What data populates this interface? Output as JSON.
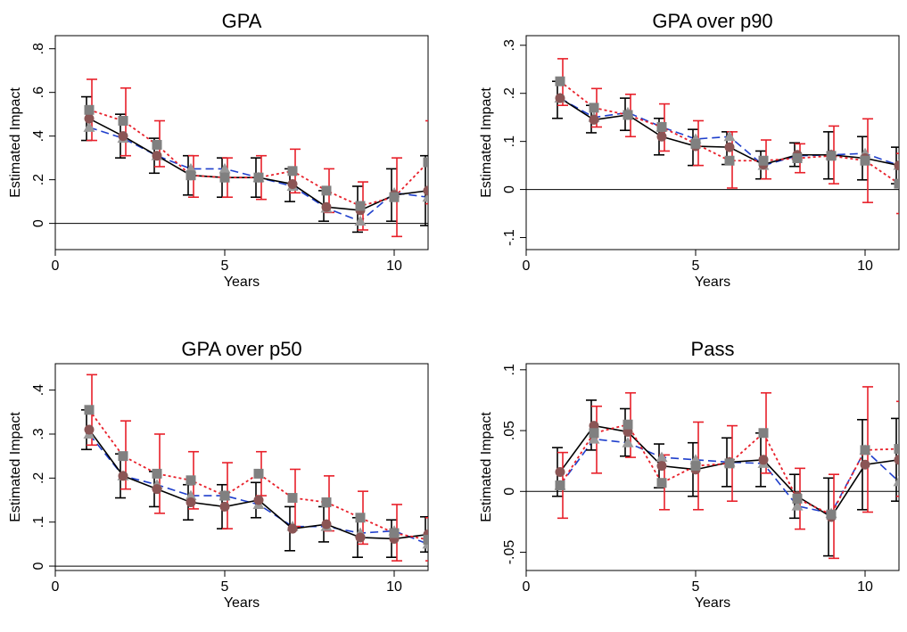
{
  "chart_data": [
    {
      "type": "line",
      "title": "GPA",
      "xlabel": "Years",
      "ylabel": "Estimated Impact",
      "xlim": [
        0,
        11
      ],
      "ylim": [
        -0.12,
        0.86
      ],
      "xticks": [
        0,
        5,
        10
      ],
      "xtick_labels": [
        "0",
        "5",
        "10"
      ],
      "yticks": [
        0,
        0.2,
        0.4,
        0.6,
        0.8
      ],
      "ytick_labels": [
        "0",
        ".2",
        ".4",
        ".6",
        ".8"
      ],
      "zero_line": 0,
      "x": [
        1,
        2,
        3,
        4,
        5,
        6,
        7,
        8,
        9,
        10,
        11
      ],
      "series": [
        {
          "style": "solid",
          "color": "#000000",
          "marker": "circle",
          "marker_color": "#8a5555",
          "values": [
            0.48,
            0.4,
            0.31,
            0.22,
            0.21,
            0.21,
            0.18,
            0.075,
            0.06,
            0.13,
            0.15
          ],
          "ci_lower": [
            0.38,
            0.3,
            0.23,
            0.13,
            0.12,
            0.12,
            0.1,
            0.01,
            -0.04,
            0.01,
            -0.01
          ],
          "ci_upper": [
            0.58,
            0.5,
            0.39,
            0.31,
            0.3,
            0.3,
            0.25,
            0.15,
            0.17,
            0.25,
            0.31
          ]
        },
        {
          "style": "dashed",
          "color": "#1f3fcc",
          "marker": "triangle",
          "marker_color": "#999999",
          "values": [
            0.44,
            0.39,
            0.31,
            0.25,
            0.25,
            0.21,
            0.17,
            0.07,
            0.01,
            0.14,
            0.12
          ],
          "ci_lower": [],
          "ci_upper": []
        },
        {
          "style": "dotted",
          "color": "#e8202a",
          "marker": "square",
          "marker_color": "#808080",
          "values": [
            0.52,
            0.47,
            0.36,
            0.22,
            0.21,
            0.21,
            0.24,
            0.15,
            0.08,
            0.12,
            0.28
          ],
          "ci_lower": [
            0.38,
            0.31,
            0.26,
            0.12,
            0.12,
            0.11,
            0.14,
            0.05,
            -0.03,
            -0.06,
            0.09
          ],
          "ci_upper": [
            0.66,
            0.62,
            0.47,
            0.31,
            0.3,
            0.31,
            0.34,
            0.25,
            0.19,
            0.3,
            0.47
          ]
        }
      ]
    },
    {
      "type": "line",
      "title": "GPA over p90",
      "xlabel": "Years",
      "ylabel": "Estimated Impact",
      "xlim": [
        0,
        11
      ],
      "ylim": [
        -0.125,
        0.32
      ],
      "xticks": [
        0,
        5,
        10
      ],
      "xtick_labels": [
        "0",
        "5",
        "10"
      ],
      "yticks": [
        -0.1,
        0,
        0.1,
        0.2,
        0.3
      ],
      "ytick_labels": [
        "-.1",
        "0",
        ".1",
        ".2",
        ".3"
      ],
      "zero_line": 0,
      "x": [
        1,
        2,
        3,
        4,
        5,
        6,
        7,
        8,
        9,
        10,
        11
      ],
      "series": [
        {
          "style": "solid",
          "color": "#000000",
          "marker": "circle",
          "marker_color": "#8a5555",
          "values": [
            0.19,
            0.145,
            0.155,
            0.11,
            0.09,
            0.088,
            0.052,
            0.072,
            0.072,
            0.065,
            0.05
          ],
          "ci_lower": [
            0.148,
            0.118,
            0.123,
            0.072,
            0.05,
            0.052,
            0.022,
            0.048,
            0.022,
            0.02,
            0.012
          ],
          "ci_upper": [
            0.225,
            0.175,
            0.19,
            0.148,
            0.125,
            0.12,
            0.08,
            0.097,
            0.12,
            0.11,
            0.088
          ]
        },
        {
          "style": "dashed",
          "color": "#1f3fcc",
          "marker": "triangle",
          "marker_color": "#999999",
          "values": [
            0.19,
            0.15,
            0.16,
            0.13,
            0.105,
            0.11,
            0.05,
            0.07,
            0.072,
            0.075,
            0.05
          ],
          "ci_lower": [],
          "ci_upper": []
        },
        {
          "style": "dotted",
          "color": "#e8202a",
          "marker": "square",
          "marker_color": "#808080",
          "values": [
            0.225,
            0.17,
            0.155,
            0.13,
            0.095,
            0.06,
            0.06,
            0.065,
            0.07,
            0.06,
            0.012
          ],
          "ci_lower": [
            0.175,
            0.13,
            0.11,
            0.08,
            0.05,
            0.003,
            0.022,
            0.035,
            0.012,
            -0.027,
            -0.05
          ],
          "ci_upper": [
            0.272,
            0.21,
            0.198,
            0.178,
            0.143,
            0.12,
            0.103,
            0.095,
            0.132,
            0.147,
            0.075
          ]
        }
      ]
    },
    {
      "type": "line",
      "title": "GPA over p50",
      "xlabel": "Years",
      "ylabel": "Estimated Impact",
      "xlim": [
        0,
        11
      ],
      "ylim": [
        -0.01,
        0.46
      ],
      "xticks": [
        0,
        5,
        10
      ],
      "xtick_labels": [
        "0",
        "5",
        "10"
      ],
      "yticks": [
        0,
        0.1,
        0.2,
        0.3,
        0.4
      ],
      "ytick_labels": [
        "0",
        ".1",
        ".2",
        ".3",
        ".4"
      ],
      "zero_line": 0,
      "x": [
        1,
        2,
        3,
        4,
        5,
        6,
        7,
        8,
        9,
        10,
        11
      ],
      "series": [
        {
          "style": "solid",
          "color": "#000000",
          "marker": "circle",
          "marker_color": "#8a5555",
          "values": [
            0.31,
            0.205,
            0.175,
            0.145,
            0.135,
            0.15,
            0.085,
            0.095,
            0.065,
            0.062,
            0.072
          ],
          "ci_lower": [
            0.265,
            0.155,
            0.135,
            0.105,
            0.085,
            0.11,
            0.035,
            0.055,
            0.02,
            0.02,
            0.032
          ],
          "ci_upper": [
            0.355,
            0.255,
            0.215,
            0.185,
            0.185,
            0.19,
            0.135,
            0.135,
            0.11,
            0.105,
            0.112
          ]
        },
        {
          "style": "dashed",
          "color": "#1f3fcc",
          "marker": "triangle",
          "marker_color": "#999999",
          "values": [
            0.3,
            0.205,
            0.185,
            0.16,
            0.16,
            0.14,
            0.09,
            0.09,
            0.075,
            0.08,
            0.05
          ],
          "ci_lower": [],
          "ci_upper": []
        },
        {
          "style": "dotted",
          "color": "#e8202a",
          "marker": "square",
          "marker_color": "#808080",
          "values": [
            0.355,
            0.25,
            0.21,
            0.195,
            0.16,
            0.21,
            0.155,
            0.145,
            0.11,
            0.075,
            0.06
          ],
          "ci_lower": [
            0.275,
            0.175,
            0.12,
            0.13,
            0.085,
            0.16,
            0.09,
            0.08,
            0.05,
            0.012,
            0.012
          ],
          "ci_upper": [
            0.435,
            0.33,
            0.3,
            0.26,
            0.235,
            0.26,
            0.22,
            0.205,
            0.17,
            0.14,
            0.11
          ]
        }
      ]
    },
    {
      "type": "line",
      "title": "Pass",
      "xlabel": "Years",
      "ylabel": "Estimated Impact",
      "xlim": [
        0,
        11
      ],
      "ylim": [
        -0.065,
        0.105
      ],
      "xticks": [
        0,
        5,
        10
      ],
      "xtick_labels": [
        "0",
        "5",
        "10"
      ],
      "yticks": [
        -0.05,
        0,
        0.05,
        0.1
      ],
      "ytick_labels": [
        "-.05",
        "0",
        ".05",
        ".1"
      ],
      "zero_line": 0,
      "x": [
        1,
        2,
        3,
        4,
        5,
        6,
        7,
        8,
        9,
        10,
        11
      ],
      "series": [
        {
          "style": "solid",
          "color": "#000000",
          "marker": "circle",
          "marker_color": "#8a5555",
          "values": [
            0.016,
            0.054,
            0.049,
            0.021,
            0.018,
            0.024,
            0.026,
            -0.004,
            -0.021,
            0.022,
            0.026
          ],
          "ci_lower": [
            -0.004,
            0.034,
            0.029,
            0.003,
            -0.004,
            0.004,
            0.004,
            -0.022,
            -0.053,
            -0.015,
            -0.008
          ],
          "ci_upper": [
            0.036,
            0.075,
            0.068,
            0.039,
            0.04,
            0.044,
            0.048,
            0.014,
            0.011,
            0.059,
            0.06
          ]
        },
        {
          "style": "dashed",
          "color": "#1f3fcc",
          "marker": "triangle",
          "marker_color": "#999999",
          "values": [
            0.005,
            0.043,
            0.04,
            0.028,
            0.026,
            0.024,
            0.023,
            -0.012,
            -0.018,
            0.034,
            0.008
          ],
          "ci_lower": [],
          "ci_upper": []
        },
        {
          "style": "dotted",
          "color": "#e8202a",
          "marker": "square",
          "marker_color": "#808080",
          "values": [
            0.005,
            0.048,
            0.055,
            0.007,
            0.021,
            0.023,
            0.048,
            -0.006,
            -0.019,
            0.034,
            0.035
          ],
          "ci_lower": [
            -0.022,
            0.015,
            0.028,
            -0.015,
            -0.015,
            -0.008,
            0.015,
            -0.031,
            -0.055,
            -0.017,
            -0.004
          ],
          "ci_upper": [
            0.032,
            0.07,
            0.081,
            0.03,
            0.057,
            0.054,
            0.081,
            0.019,
            0.014,
            0.086,
            0.074
          ]
        }
      ]
    }
  ]
}
